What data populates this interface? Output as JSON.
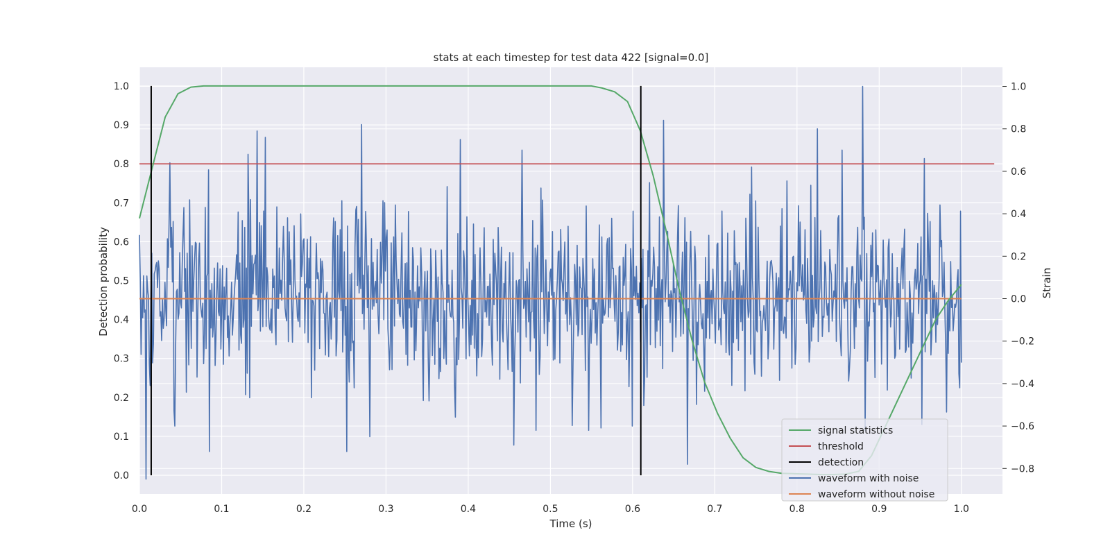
{
  "colors": {
    "plot_background": "#eaeaf2",
    "grid": "#ffffff",
    "signal_statistics": "#55a868",
    "threshold": "#c44e52",
    "detection": "#000000",
    "waveform_with_noise": "#4c72b0",
    "waveform_without_noise": "#dd8452"
  },
  "chart_data": {
    "type": "line",
    "title": "stats at each timestep for test data 422 [signal=0.0]",
    "xlabel": "Time (s)",
    "ylabel": "Detection probability",
    "y2label": "Strain",
    "xlim": [
      0.0,
      1.05
    ],
    "ylim": [
      -0.048,
      1.048
    ],
    "y2lim": [
      -0.92,
      1.09
    ],
    "xticks": [
      0.0,
      0.1,
      0.2,
      0.3,
      0.4,
      0.5,
      0.6,
      0.7,
      0.8,
      0.9,
      1.0
    ],
    "xtick_labels": [
      "0.0",
      "0.1",
      "0.2",
      "0.3",
      "0.4",
      "0.5",
      "0.6",
      "0.7",
      "0.8",
      "0.9",
      "1.0"
    ],
    "yticks": [
      0.0,
      0.1,
      0.2,
      0.3,
      0.4,
      0.5,
      0.6,
      0.7,
      0.8,
      0.9,
      1.0
    ],
    "ytick_labels": [
      "0.0",
      "0.1",
      "0.2",
      "0.3",
      "0.4",
      "0.5",
      "0.6",
      "0.7",
      "0.8",
      "0.9",
      "1.0"
    ],
    "y2ticks": [
      -0.8,
      -0.6,
      -0.4,
      -0.2,
      0.0,
      0.2,
      0.4,
      0.6,
      0.8,
      1.0
    ],
    "y2tick_labels": [
      "−0.8",
      "−0.6",
      "−0.4",
      "−0.2",
      "0.0",
      "0.2",
      "0.4",
      "0.6",
      "0.8",
      "1.0"
    ],
    "grid": true,
    "legend_position": "lower right",
    "legend": [
      "signal statistics",
      "threshold",
      "detection",
      "waveform with noise",
      "waveform without noise"
    ],
    "series": [
      {
        "name": "signal statistics",
        "axis": "left",
        "x": [
          0.0,
          0.0156,
          0.0313,
          0.0469,
          0.0625,
          0.0781,
          0.0938,
          0.55,
          0.5625,
          0.5781,
          0.5938,
          0.6094,
          0.625,
          0.6406,
          0.6563,
          0.6719,
          0.6875,
          0.7031,
          0.7188,
          0.7344,
          0.75,
          0.7656,
          0.7813,
          0.7969,
          0.8125,
          0.8281,
          0.8438,
          0.8594,
          0.875,
          0.8906,
          0.9063,
          0.9219,
          0.9375,
          0.9531,
          0.9688,
          0.9844,
          1.0
        ],
        "values": [
          0.66,
          0.79,
          0.92,
          0.98,
          0.997,
          1.0,
          1.0,
          1.0,
          0.995,
          0.985,
          0.96,
          0.885,
          0.77,
          0.63,
          0.48,
          0.35,
          0.24,
          0.16,
          0.095,
          0.045,
          0.02,
          0.01,
          0.005,
          0.004,
          0.003,
          0.002,
          0.002,
          0.003,
          0.01,
          0.05,
          0.12,
          0.19,
          0.26,
          0.33,
          0.4,
          0.45,
          0.49
        ]
      },
      {
        "name": "threshold",
        "axis": "left",
        "x": [
          0.0,
          1.04
        ],
        "values": [
          0.8,
          0.8
        ]
      },
      {
        "name": "detection",
        "axis": "left",
        "type": "vlines",
        "x": [
          0.0143,
          0.61
        ],
        "y_range": [
          0.0,
          1.0
        ]
      },
      {
        "name": "waveform with noise",
        "axis": "right",
        "x_range": [
          0.0,
          1.0
        ],
        "n_points": 1000,
        "summary": "dense noise around 0 with amplitude ~±0.3 and spikes up to 1.0 near t=0.88 and down to −0.85 near t=0.01",
        "peaks": [
          {
            "x": 0.0,
            "value": 0.3
          },
          {
            "x": 0.0085,
            "value": -0.85
          },
          {
            "x": 0.037,
            "value": 0.64
          },
          {
            "x": 0.043,
            "value": -0.6
          },
          {
            "x": 0.085,
            "value": -0.72
          },
          {
            "x": 0.132,
            "value": 0.68
          },
          {
            "x": 0.143,
            "value": 0.79
          },
          {
            "x": 0.153,
            "value": 0.76
          },
          {
            "x": 0.252,
            "value": -0.72
          },
          {
            "x": 0.27,
            "value": 0.82
          },
          {
            "x": 0.28,
            "value": -0.65
          },
          {
            "x": 0.39,
            "value": 0.75
          },
          {
            "x": 0.455,
            "value": -0.69
          },
          {
            "x": 0.465,
            "value": 0.7
          },
          {
            "x": 0.6,
            "value": -0.6
          },
          {
            "x": 0.638,
            "value": 0.84
          },
          {
            "x": 0.667,
            "value": -0.78
          },
          {
            "x": 0.745,
            "value": 0.62
          },
          {
            "x": 0.825,
            "value": 0.8
          },
          {
            "x": 0.855,
            "value": 0.7
          },
          {
            "x": 0.88,
            "value": 1.0
          },
          {
            "x": 0.955,
            "value": 0.66
          },
          {
            "x": 0.998,
            "value": -0.42
          }
        ]
      },
      {
        "name": "waveform without noise",
        "axis": "right",
        "x": [
          0.0,
          1.0
        ],
        "values": [
          0.0,
          0.0
        ]
      }
    ]
  }
}
